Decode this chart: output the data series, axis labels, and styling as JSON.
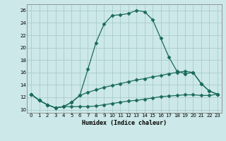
{
  "xlabel": "Humidex (Indice chaleur)",
  "background_color": "#cce8e8",
  "grid_color": "#aacccc",
  "line_color": "#1a6b5a",
  "x_values": [
    0,
    1,
    2,
    3,
    4,
    5,
    6,
    7,
    8,
    9,
    10,
    11,
    12,
    13,
    14,
    15,
    16,
    17,
    18,
    19,
    20,
    21,
    22,
    23
  ],
  "y_main": [
    12.5,
    11.5,
    10.8,
    10.3,
    10.5,
    11.2,
    12.3,
    16.5,
    20.8,
    23.8,
    25.2,
    25.3,
    25.5,
    26.0,
    25.8,
    24.5,
    21.5,
    18.5,
    16.2,
    15.8,
    16.0,
    14.2,
    13.0,
    12.5
  ],
  "y_mid": [
    12.5,
    11.5,
    10.8,
    10.3,
    10.5,
    11.2,
    12.3,
    12.8,
    13.2,
    13.6,
    13.9,
    14.2,
    14.5,
    14.8,
    15.0,
    15.3,
    15.5,
    15.8,
    16.0,
    16.2,
    16.0,
    14.2,
    13.0,
    12.5
  ],
  "y_low": [
    12.5,
    11.5,
    10.8,
    10.3,
    10.5,
    10.5,
    10.5,
    10.5,
    10.6,
    10.8,
    11.0,
    11.2,
    11.4,
    11.5,
    11.7,
    11.9,
    12.1,
    12.2,
    12.3,
    12.4,
    12.4,
    12.3,
    12.3,
    12.5
  ],
  "ylim": [
    9.5,
    27
  ],
  "xlim": [
    -0.5,
    23.5
  ],
  "yticks": [
    10,
    12,
    14,
    16,
    18,
    20,
    22,
    24,
    26
  ],
  "xticks": [
    0,
    1,
    2,
    3,
    4,
    5,
    6,
    7,
    8,
    9,
    10,
    11,
    12,
    13,
    14,
    15,
    16,
    17,
    18,
    19,
    20,
    21,
    22,
    23
  ]
}
